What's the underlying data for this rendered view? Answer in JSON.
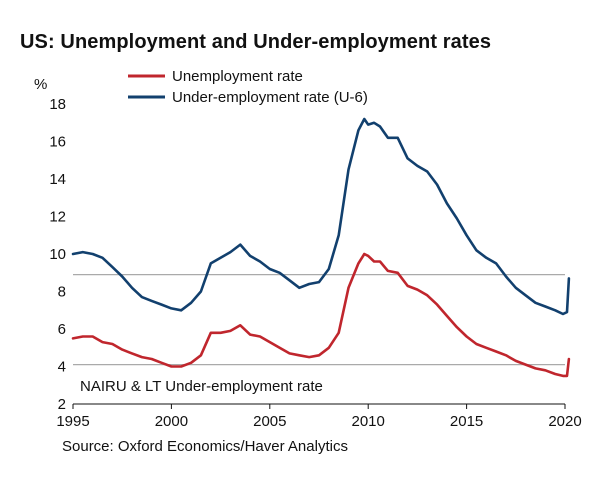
{
  "title": "US: Unemployment and Under-employment rates",
  "source": "Source: Oxford Economics/Haver Analytics",
  "colors": {
    "unemployment": "#c0262d",
    "underemployment": "#12406e",
    "reference": "#aaaaaa"
  },
  "chart_data": {
    "type": "line",
    "title": "US: Unemployment and Under-employment rates",
    "ylabel": "%",
    "xlabel": "",
    "xlim": [
      1995,
      2020
    ],
    "ylim": [
      2,
      18
    ],
    "x_ticks": [
      "1995",
      "2000",
      "2005",
      "2010",
      "2015",
      "2020"
    ],
    "y_ticks": [
      "2",
      "4",
      "6",
      "8",
      "10",
      "12",
      "14",
      "16",
      "18"
    ],
    "grid": false,
    "legend_position": "top",
    "annotation": "NAIRU & LT Under-employment rate",
    "reference_lines": [
      {
        "label": "NAIRU",
        "y": 4.1
      },
      {
        "label": "LT Under-employment rate",
        "y": 8.9
      }
    ],
    "series": [
      {
        "name": "Unemployment rate",
        "x": [
          1995.0,
          1995.5,
          1996.0,
          1996.5,
          1997.0,
          1997.5,
          1998.0,
          1998.5,
          1999.0,
          1999.5,
          2000.0,
          2000.5,
          2001.0,
          2001.5,
          2002.0,
          2002.5,
          2003.0,
          2003.5,
          2004.0,
          2004.5,
          2005.0,
          2005.5,
          2006.0,
          2006.5,
          2007.0,
          2007.5,
          2008.0,
          2008.5,
          2009.0,
          2009.5,
          2009.8,
          2010.0,
          2010.3,
          2010.6,
          2011.0,
          2011.5,
          2012.0,
          2012.5,
          2013.0,
          2013.5,
          2014.0,
          2014.5,
          2015.0,
          2015.5,
          2016.0,
          2016.5,
          2017.0,
          2017.5,
          2018.0,
          2018.5,
          2019.0,
          2019.5,
          2019.9,
          2020.1,
          2020.2
        ],
        "values": [
          5.5,
          5.6,
          5.6,
          5.3,
          5.2,
          4.9,
          4.7,
          4.5,
          4.4,
          4.2,
          4.0,
          4.0,
          4.2,
          4.6,
          5.8,
          5.8,
          5.9,
          6.2,
          5.7,
          5.6,
          5.3,
          5.0,
          4.7,
          4.6,
          4.5,
          4.6,
          5.0,
          5.8,
          8.2,
          9.5,
          10.0,
          9.9,
          9.6,
          9.6,
          9.1,
          9.0,
          8.3,
          8.1,
          7.8,
          7.3,
          6.7,
          6.1,
          5.6,
          5.2,
          5.0,
          4.8,
          4.6,
          4.3,
          4.1,
          3.9,
          3.8,
          3.6,
          3.5,
          3.5,
          4.4
        ]
      },
      {
        "name": "Under-employment rate (U-6)",
        "x": [
          1995.0,
          1995.5,
          1996.0,
          1996.5,
          1997.0,
          1997.5,
          1998.0,
          1998.5,
          1999.0,
          1999.5,
          2000.0,
          2000.5,
          2001.0,
          2001.5,
          2002.0,
          2002.5,
          2003.0,
          2003.5,
          2004.0,
          2004.5,
          2005.0,
          2005.5,
          2006.0,
          2006.5,
          2007.0,
          2007.5,
          2008.0,
          2008.5,
          2009.0,
          2009.5,
          2009.8,
          2010.0,
          2010.3,
          2010.6,
          2011.0,
          2011.5,
          2012.0,
          2012.5,
          2013.0,
          2013.5,
          2014.0,
          2014.5,
          2015.0,
          2015.5,
          2016.0,
          2016.5,
          2017.0,
          2017.5,
          2018.0,
          2018.5,
          2019.0,
          2019.5,
          2019.9,
          2020.1,
          2020.2
        ],
        "values": [
          10.0,
          10.1,
          10.0,
          9.8,
          9.3,
          8.8,
          8.2,
          7.7,
          7.5,
          7.3,
          7.1,
          7.0,
          7.4,
          8.0,
          9.5,
          9.8,
          10.1,
          10.5,
          9.9,
          9.6,
          9.2,
          9.0,
          8.6,
          8.2,
          8.4,
          8.5,
          9.2,
          11.0,
          14.5,
          16.6,
          17.2,
          16.9,
          17.0,
          16.8,
          16.2,
          16.2,
          15.1,
          14.7,
          14.4,
          13.7,
          12.7,
          11.9,
          11.0,
          10.2,
          9.8,
          9.5,
          8.8,
          8.2,
          7.8,
          7.4,
          7.2,
          7.0,
          6.8,
          6.9,
          8.7
        ]
      }
    ]
  }
}
